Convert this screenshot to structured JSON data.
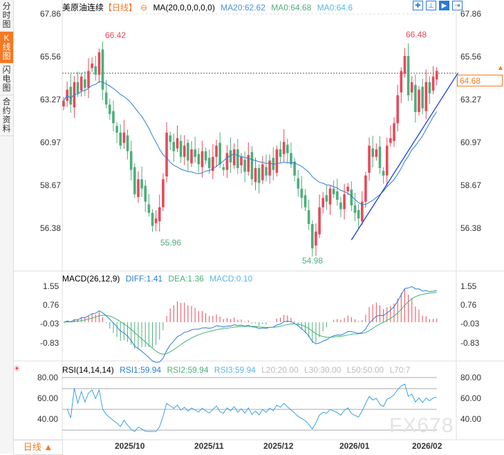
{
  "sidebar": {
    "items": [
      {
        "label": "分时图",
        "active": false
      },
      {
        "label": "K线图",
        "active": true
      },
      {
        "label": "闪电图",
        "active": false
      },
      {
        "label": "合约资料",
        "active": false
      }
    ]
  },
  "header": {
    "symbol": "美原油连续",
    "period": "【日线】",
    "ma_label": "MA(20,0,0,0,0,0)",
    "ma20": "MA20:62.62",
    "ma0a": "MA0:64.68",
    "ma0b": "MA0:64.6"
  },
  "toolbar": {
    "icons": [
      "crosshair-icon",
      "range-icon",
      "play-icon",
      "arrow-right-icon"
    ]
  },
  "price_axis": {
    "ticks": [
      "67.86",
      "65.56",
      "63.27",
      "60.97",
      "58.67",
      "56.38"
    ],
    "current": "64.68"
  },
  "annotations": {
    "high1": "66.42",
    "high2": "66.48",
    "low1": "55.96",
    "low2": "54.98"
  },
  "macd": {
    "label": "MACD(26,12,9)",
    "diff": "DIFF:1.41",
    "dea": "DEA:1.36",
    "macd": "MACD:0.10",
    "ticks": [
      "1.55",
      "0.76",
      "-0.03",
      "-0.83"
    ]
  },
  "rsi": {
    "label": "RSI(14,14,14)",
    "rsi1": "RSI1:59.94",
    "rsi2": "RSI2:59.94",
    "rsi3": "RSI3:59.94",
    "l20": "L20:20.00",
    "l30": "L30:30.00",
    "l50": "L50:50.00",
    "l70": "L70:7",
    "ticks": [
      "80.00",
      "60.00",
      "40.00"
    ]
  },
  "xaxis": [
    "2025/10",
    "2025/11",
    "2025/12",
    "2026/01",
    "2026/02"
  ],
  "footer": {
    "period": "日线 ▲"
  },
  "watermark": "FX678",
  "colors": {
    "up": "#e8485a",
    "down": "#4caf7a",
    "ma20": "#2a7bd6",
    "accent": "#f47920"
  },
  "chart_data": {
    "type": "candlestick",
    "closes": [
      63.2,
      63.8,
      63.0,
      64.2,
      63.6,
      64.5,
      63.9,
      64.8,
      65.2,
      64.6,
      65.8,
      63.8,
      63.0,
      62.5,
      62.0,
      61.5,
      60.8,
      61.5,
      60.5,
      59.5,
      58.2,
      59.0,
      58.5,
      57.8,
      57.2,
      56.5,
      56.9,
      57.5,
      59.0,
      61.5,
      61.0,
      60.5,
      61.2,
      60.2,
      60.8,
      60.0,
      60.6,
      60.2,
      59.8,
      60.5,
      60.0,
      59.6,
      60.2,
      60.8,
      59.8,
      59.5,
      60.4,
      59.9,
      60.6,
      59.6,
      60.2,
      59.4,
      60.3,
      59.0,
      59.6,
      58.8,
      59.8,
      59.2,
      60.0,
      59.5,
      60.6,
      60.2,
      61.0,
      60.4,
      59.8,
      59.2,
      58.5,
      58.0,
      57.5,
      56.6,
      55.3,
      56.2,
      57.5,
      58.0,
      57.8,
      58.5,
      58.2,
      57.9,
      57.4,
      58.2,
      58.6,
      57.6,
      57.2,
      56.9,
      57.8,
      59.2,
      60.8,
      60.2,
      60.6,
      59.6,
      59.2,
      60.8,
      61.2,
      62.0,
      63.5,
      64.8,
      65.6,
      63.5,
      64.2,
      62.6,
      63.8,
      62.8,
      64.2,
      63.6,
      64.5,
      64.8
    ],
    "ylim": [
      54.5,
      68.2
    ],
    "trendline": [
      [
        81,
        55.75
      ],
      [
        111,
        64.7
      ]
    ],
    "ma_period": 20
  }
}
